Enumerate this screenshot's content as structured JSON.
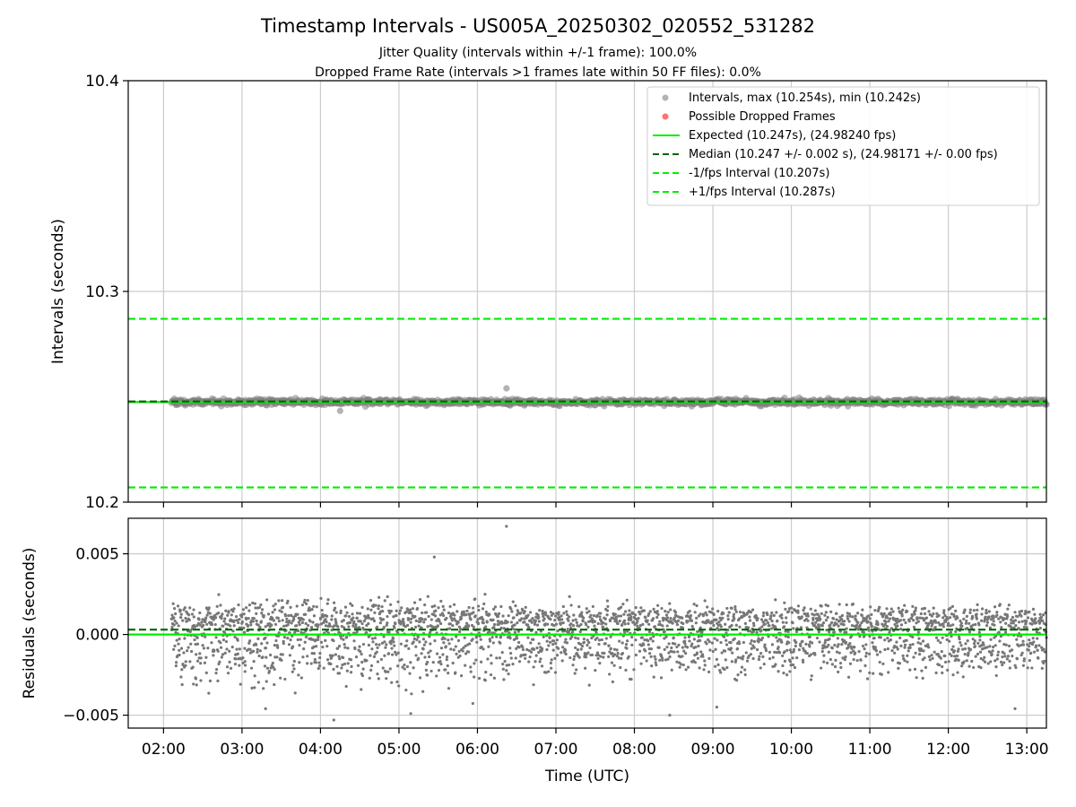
{
  "chart_data": [
    {
      "type": "scatter",
      "title": "Timestamp Intervals - US005A_20250302_020552_531282",
      "subtitle_lines": [
        "Jitter Quality (intervals within +/-1 frame): 100.0%",
        "Dropped Frame Rate (intervals >1 frames late within 50 FF files): 0.0%"
      ],
      "xlabel": "",
      "ylabel": "Intervals (seconds)",
      "x_unit": "hours UTC",
      "xlim": [
        1.55,
        13.25
      ],
      "ylim": [
        10.2,
        10.4
      ],
      "yticks": [
        10.2,
        10.3,
        10.4
      ],
      "ytick_labels": [
        "10.2",
        "10.3",
        "10.4"
      ],
      "grid": true,
      "legend_position": "top-right",
      "legend": [
        "Intervals, max (10.254s), min (10.242s)",
        "Possible Dropped Frames",
        "Expected (10.247s), (24.98240 fps)",
        "Median (10.247 +/- 0.002 s), (24.98171 +/- 0.00 fps)",
        "-1/fps Interval (10.207s)",
        "+1/fps Interval (10.287s)"
      ],
      "series": [
        {
          "name": "Intervals, max (10.254s), min (10.242s)",
          "kind": "scatter",
          "color": "#808080",
          "x_range": [
            2.1,
            13.25
          ],
          "center": 10.247,
          "spread": 0.002,
          "max": 10.254,
          "min": 10.242
        },
        {
          "name": "Possible Dropped Frames",
          "kind": "scatter",
          "color": "#ff5a5a",
          "points": []
        },
        {
          "name": "Expected (10.247s), (24.98240 fps)",
          "kind": "hline",
          "y": 10.2475,
          "color": "#00ee00",
          "style": "solid"
        },
        {
          "name": "Median (10.247 +/- 0.002 s), (24.98171 +/- 0.00 fps)",
          "kind": "hline",
          "y": 10.2478,
          "color": "#006400",
          "style": "dashed"
        },
        {
          "name": "-1/fps Interval (10.207s)",
          "kind": "hline",
          "y": 10.207,
          "color": "#00ee00",
          "style": "dashed"
        },
        {
          "name": "+1/fps Interval (10.287s)",
          "kind": "hline",
          "y": 10.287,
          "color": "#00ee00",
          "style": "dashed"
        }
      ]
    },
    {
      "type": "scatter",
      "title": "",
      "xlabel": "Time (UTC)",
      "ylabel": "Residuals (seconds)",
      "x_unit": "hours UTC",
      "xlim": [
        1.55,
        13.25
      ],
      "ylim": [
        -0.0058,
        0.0072
      ],
      "xticks": [
        2,
        3,
        4,
        5,
        6,
        7,
        8,
        9,
        10,
        11,
        12,
        13
      ],
      "xtick_labels": [
        "02:00",
        "03:00",
        "04:00",
        "05:00",
        "06:00",
        "07:00",
        "08:00",
        "09:00",
        "10:00",
        "11:00",
        "12:00",
        "13:00"
      ],
      "yticks": [
        -0.005,
        0.0,
        0.005
      ],
      "ytick_labels": [
        "−0.005",
        "0.000",
        "0.005"
      ],
      "grid": true,
      "series": [
        {
          "name": "",
          "kind": "scatter",
          "color": "#777777",
          "x_range": [
            2.1,
            13.25
          ],
          "min": -0.0053,
          "max": 0.0067
        },
        {
          "name": "",
          "kind": "hline",
          "y": 0.0,
          "color": "#00ee00",
          "style": "solid"
        },
        {
          "name": "",
          "kind": "hline",
          "y": 0.0003,
          "color": "#006400",
          "style": "dashed"
        }
      ]
    }
  ]
}
